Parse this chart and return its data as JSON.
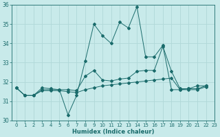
{
  "xlabel": "Humidex (Indice chaleur)",
  "background_color": "#c8eaea",
  "grid_color": "#b0d8d8",
  "line_color": "#1a6b6b",
  "xlim": [
    -0.5,
    23
  ],
  "ylim": [
    30,
    36
  ],
  "yticks": [
    30,
    31,
    32,
    33,
    34,
    35,
    36
  ],
  "xticks": [
    0,
    1,
    2,
    3,
    4,
    5,
    6,
    7,
    8,
    9,
    10,
    11,
    12,
    13,
    14,
    15,
    16,
    17,
    18,
    19,
    20,
    21,
    22,
    23
  ],
  "x_values": [
    0,
    1,
    2,
    3,
    4,
    5,
    6,
    7,
    8,
    9,
    10,
    11,
    12,
    13,
    14,
    15,
    16,
    17,
    18,
    19,
    20,
    21,
    22
  ],
  "series": [
    [
      31.7,
      31.3,
      31.3,
      31.7,
      31.65,
      31.6,
      30.3,
      31.3,
      33.1,
      35.0,
      34.4,
      34.0,
      35.1,
      34.8,
      35.9,
      33.3,
      33.3,
      33.9,
      31.6,
      31.6,
      31.65,
      31.8,
      31.8
    ],
    [
      31.7,
      31.3,
      31.3,
      31.6,
      31.6,
      31.6,
      31.6,
      31.55,
      32.3,
      32.6,
      32.1,
      32.05,
      32.15,
      32.2,
      32.55,
      32.6,
      32.6,
      33.85,
      32.55,
      31.65,
      31.65,
      31.65,
      31.8
    ],
    [
      31.7,
      31.3,
      31.3,
      31.55,
      31.55,
      31.55,
      31.5,
      31.45,
      31.6,
      31.7,
      31.8,
      31.85,
      31.9,
      31.95,
      32.0,
      32.05,
      32.1,
      32.15,
      32.2,
      31.6,
      31.6,
      31.6,
      31.75
    ]
  ]
}
